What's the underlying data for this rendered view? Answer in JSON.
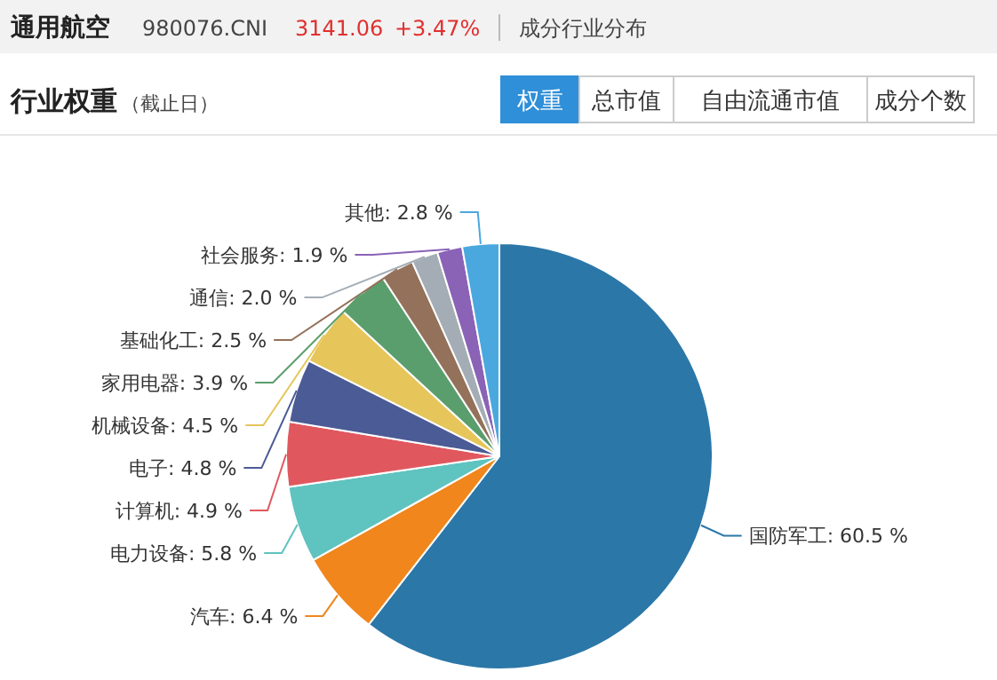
{
  "chart_data": {
    "type": "pie",
    "title": "行业权重",
    "subtitle": "（截止日）",
    "annotations": [
      "通用航空",
      "980076.CNI",
      "3141.06",
      "+3.47%",
      "成分行业分布",
      "权重",
      "总市值",
      "自由流通市值",
      "成分个数"
    ],
    "categories": [
      "国防军工",
      "汽车",
      "电力设备",
      "计算机",
      "电子",
      "机械设备",
      "家用电器",
      "基础化工",
      "通信",
      "社会服务",
      "其他"
    ],
    "values": [
      60.5,
      6.4,
      5.8,
      4.9,
      4.8,
      4.5,
      3.9,
      2.5,
      2.0,
      1.9,
      2.8
    ],
    "colors": [
      "#2b77a8",
      "#f0861c",
      "#5fc3bf",
      "#e0585e",
      "#4b5b95",
      "#e6c55a",
      "#5b9e6d",
      "#94715a",
      "#a4adb5",
      "#8a62b6",
      "#4aa8df"
    ],
    "value_labels": [
      ": 60.5 %",
      ": 6.4 %",
      ": 5.8 %",
      ": 4.9 %",
      ": 4.8 %",
      ": 4.5 %",
      ": 3.9 %",
      ": 2.5 %",
      ": 2.0 %",
      ": 1.9 %",
      ": 2.8 %"
    ]
  }
}
